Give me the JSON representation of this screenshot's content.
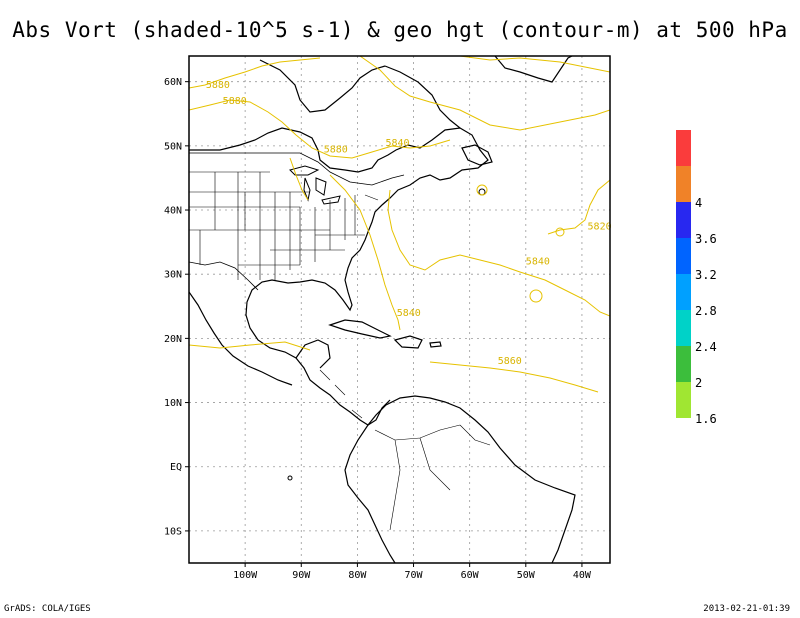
{
  "title": "Abs Vort (shaded-10^5 s-1) & geo hgt (contour-m) at 500 hPa",
  "footer": {
    "left": "GrADS: COLA/IGES",
    "right": "2013-02-21-01:39"
  },
  "map": {
    "lon_range": [
      -110,
      -35
    ],
    "lat_range": [
      -15,
      64
    ],
    "lat_ticks": [
      {
        "value": 60,
        "label": "60N"
      },
      {
        "value": 50,
        "label": "50N"
      },
      {
        "value": 40,
        "label": "40N"
      },
      {
        "value": 30,
        "label": "30N"
      },
      {
        "value": 20,
        "label": "20N"
      },
      {
        "value": 10,
        "label": "10N"
      },
      {
        "value": 0,
        "label": "EQ"
      },
      {
        "value": -10,
        "label": "10S"
      }
    ],
    "lon_ticks": [
      {
        "value": -100,
        "label": "100W"
      },
      {
        "value": -90,
        "label": "90W"
      },
      {
        "value": -80,
        "label": "80W"
      },
      {
        "value": -70,
        "label": "70W"
      },
      {
        "value": -60,
        "label": "60W"
      },
      {
        "value": -50,
        "label": "50W"
      },
      {
        "value": -40,
        "label": "40W"
      }
    ],
    "grid": true,
    "contour_color": "#e6c200",
    "contour_labels": [
      {
        "text": "5880",
        "lon": -107,
        "lat": 59
      },
      {
        "text": "5880",
        "lon": -104,
        "lat": 56.5
      },
      {
        "text": "5880",
        "lon": -86,
        "lat": 49
      },
      {
        "text": "5840",
        "lon": -75,
        "lat": 50
      },
      {
        "text": "5820",
        "lon": -39,
        "lat": 37
      },
      {
        "text": "5840",
        "lon": -50,
        "lat": 31.5
      },
      {
        "text": "5840",
        "lon": -73,
        "lat": 23.5
      },
      {
        "text": "5860",
        "lon": -55,
        "lat": 16
      }
    ]
  },
  "legend": {
    "items": [
      {
        "color": "#a0e632",
        "label": "1.6"
      },
      {
        "color": "#3cbe3c",
        "label": "2"
      },
      {
        "color": "#00d2c8",
        "label": "2.4"
      },
      {
        "color": "#00a0ff",
        "label": "2.8"
      },
      {
        "color": "#0064ff",
        "label": "3.2"
      },
      {
        "color": "#2828f0",
        "label": "3.6"
      },
      {
        "color": "#f08228",
        "label": "4"
      },
      {
        "color": "#fa3c3c",
        "label": ""
      }
    ]
  }
}
